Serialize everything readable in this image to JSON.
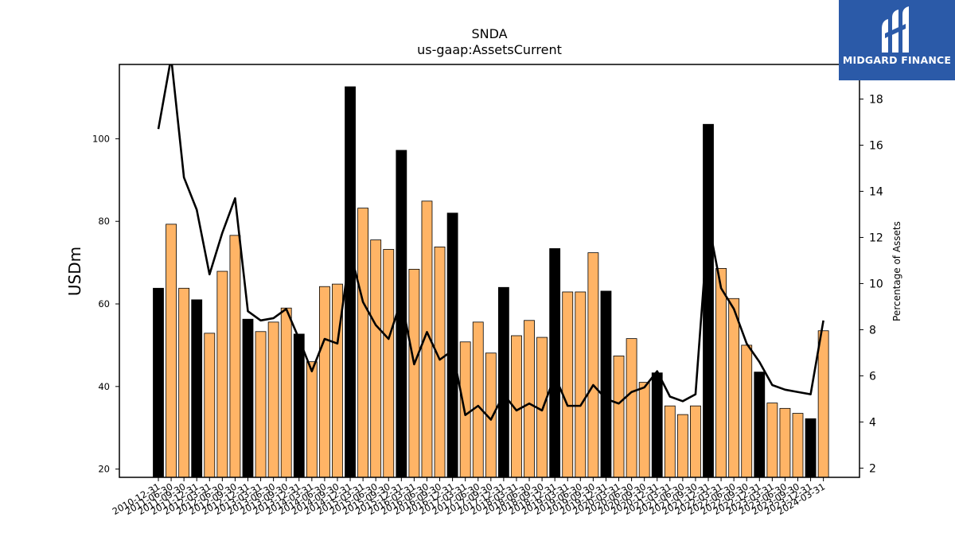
{
  "brand": {
    "name": "MIDGARD FINANCE",
    "background": "#2b5aa8"
  },
  "chart_data": {
    "type": "bar",
    "title": "SNDA",
    "subtitle": "us-gaap:AssetsCurrent",
    "ylabel": "USDm",
    "y2label": "Percentage of Assets",
    "ylim": [
      18,
      118
    ],
    "y2lim": [
      1.6,
      19.5
    ],
    "yticks": [
      20,
      40,
      60,
      80,
      100
    ],
    "y2ticks": [
      2,
      4,
      6,
      8,
      10,
      12,
      14,
      16,
      18
    ],
    "grid": false,
    "colors": {
      "annual": "#000000",
      "quarterly": "#ffb466",
      "line": "#000000"
    },
    "categories": [
      "2010-12-31",
      "2011-06-30",
      "2011-09-30",
      "2011-12-31",
      "2012-03-31",
      "2012-06-30",
      "2012-09-30",
      "2012-12-31",
      "2013-03-31",
      "2013-06-30",
      "2013-09-30",
      "2013-12-31",
      "2014-03-31",
      "2014-06-30",
      "2014-09-30",
      "2014-12-31",
      "2015-03-31",
      "2015-06-30",
      "2015-09-30",
      "2015-12-31",
      "2016-03-31",
      "2016-06-30",
      "2016-09-30",
      "2016-12-31",
      "2017-03-31",
      "2017-06-30",
      "2017-09-30",
      "2017-12-31",
      "2018-03-31",
      "2018-06-30",
      "2018-09-30",
      "2018-12-31",
      "2019-03-31",
      "2019-06-30",
      "2019-09-30",
      "2019-12-31",
      "2020-03-31",
      "2020-06-30",
      "2020-09-30",
      "2020-12-31",
      "2021-03-31",
      "2021-06-30",
      "2021-09-30",
      "2021-12-31",
      "2022-03-31",
      "2022-06-30",
      "2022-09-30",
      "2022-12-31",
      "2023-03-31",
      "2023-06-30",
      "2023-09-30",
      "2023-12-31",
      "2024-03-31"
    ],
    "series": [
      {
        "values": [
          63.8,
          79.3,
          63.8,
          61.0,
          52.9,
          67.9,
          76.6,
          56.3,
          53.3,
          55.6,
          59.0,
          52.7,
          46.0,
          64.2,
          64.8,
          112.6,
          83.2,
          75.5,
          73.2,
          97.2,
          68.4,
          84.9,
          73.8,
          82.0,
          50.8,
          55.6,
          48.1,
          64.0,
          52.3,
          56.0,
          51.9,
          73.4,
          62.9,
          62.9,
          72.4,
          63.1,
          47.4,
          51.6,
          41.0,
          43.3,
          35.3,
          33.2,
          35.3,
          103.5,
          68.6,
          61.3,
          50.0,
          43.5,
          36.0,
          34.7,
          33.5,
          32.2,
          53.5
        ],
        "highlight": [
          true,
          false,
          false,
          true,
          false,
          false,
          false,
          true,
          false,
          false,
          false,
          true,
          false,
          false,
          false,
          true,
          false,
          false,
          false,
          true,
          false,
          false,
          false,
          true,
          false,
          false,
          false,
          true,
          false,
          false,
          false,
          true,
          false,
          false,
          false,
          true,
          false,
          false,
          false,
          true,
          false,
          false,
          false,
          true,
          false,
          false,
          false,
          true,
          false,
          false,
          false,
          true,
          false
        ]
      },
      {
        "axis": "right",
        "type": "line",
        "values": [
          16.7,
          19.8,
          14.6,
          13.2,
          10.4,
          12.2,
          13.7,
          8.8,
          8.4,
          8.5,
          8.9,
          7.6,
          6.2,
          7.6,
          7.4,
          11.4,
          9.2,
          8.2,
          7.6,
          9.3,
          6.5,
          7.9,
          6.7,
          7.1,
          4.3,
          4.7,
          4.1,
          5.2,
          4.5,
          4.8,
          4.5,
          6.0,
          4.7,
          4.7,
          5.6,
          5.0,
          4.8,
          5.3,
          5.5,
          6.2,
          5.1,
          4.9,
          5.2,
          12.7,
          9.8,
          8.9,
          7.4,
          6.6,
          5.6,
          5.4,
          5.3,
          5.2,
          8.4
        ]
      }
    ]
  }
}
